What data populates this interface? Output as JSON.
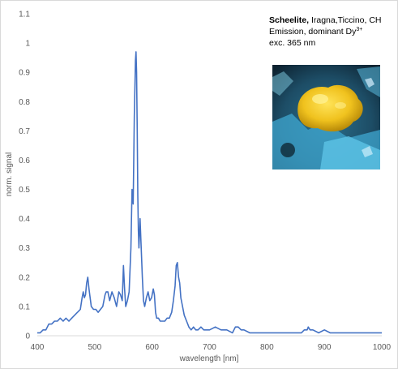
{
  "chart_data": {
    "type": "line",
    "xlabel": "wavelength [nm]",
    "ylabel": "norm. signal",
    "xlim": [
      400,
      1000
    ],
    "ylim": [
      0,
      1.1
    ],
    "x_ticks": [
      "400",
      "500",
      "600",
      "700",
      "800",
      "900",
      "1000"
    ],
    "y_ticks": [
      "0",
      "0.1",
      "0.2",
      "0.3",
      "0.4",
      "0.5",
      "0.6",
      "0.7",
      "0.8",
      "0.9",
      "1",
      "1.1"
    ],
    "grid": false,
    "line_color": "#4472C4",
    "annotation": {
      "line1_bold": "Scheelite,",
      "line1_rest": " Iragna,Ticcino, CH",
      "line2": "Emission, dominant Dy",
      "line2_sup": "3+",
      "line3": "exc. 365 nm"
    },
    "series": [
      {
        "x": [
          400,
          405,
          410,
          415,
          420,
          425,
          430,
          435,
          440,
          445,
          450,
          455,
          460,
          465,
          470,
          475,
          478,
          480,
          482,
          484,
          486,
          488,
          490,
          494,
          498,
          502,
          506,
          510,
          514,
          518,
          520,
          523,
          526,
          530,
          534,
          538,
          542,
          545,
          548,
          550,
          552,
          554,
          557,
          560,
          563,
          565,
          567,
          569,
          571,
          572,
          573,
          574,
          575,
          576,
          577,
          579,
          581,
          583,
          585,
          587,
          590,
          593,
          596,
          599,
          602,
          604,
          606,
          608,
          611,
          614,
          618,
          622,
          626,
          630,
          634,
          637,
          640,
          642,
          644,
          646,
          648,
          650,
          653,
          656,
          660,
          664,
          668,
          672,
          676,
          680,
          685,
          690,
          695,
          700,
          710,
          720,
          730,
          740,
          745,
          750,
          755,
          760,
          770,
          780,
          790,
          800,
          810,
          820,
          830,
          840,
          850,
          860,
          865,
          870,
          872,
          875,
          880,
          890,
          900,
          910,
          920,
          930,
          940,
          950,
          960,
          970,
          980,
          990,
          1000
        ],
        "values": [
          0.01,
          0.01,
          0.02,
          0.02,
          0.04,
          0.04,
          0.05,
          0.05,
          0.06,
          0.05,
          0.06,
          0.05,
          0.06,
          0.07,
          0.08,
          0.09,
          0.13,
          0.15,
          0.13,
          0.14,
          0.18,
          0.2,
          0.16,
          0.1,
          0.09,
          0.09,
          0.08,
          0.09,
          0.1,
          0.14,
          0.15,
          0.15,
          0.12,
          0.15,
          0.13,
          0.1,
          0.15,
          0.14,
          0.12,
          0.24,
          0.16,
          0.1,
          0.12,
          0.15,
          0.3,
          0.5,
          0.45,
          0.75,
          0.94,
          0.97,
          0.9,
          0.7,
          0.48,
          0.36,
          0.3,
          0.4,
          0.3,
          0.2,
          0.12,
          0.1,
          0.13,
          0.15,
          0.12,
          0.13,
          0.16,
          0.14,
          0.08,
          0.06,
          0.06,
          0.05,
          0.05,
          0.05,
          0.06,
          0.06,
          0.08,
          0.12,
          0.17,
          0.24,
          0.25,
          0.2,
          0.18,
          0.13,
          0.1,
          0.07,
          0.05,
          0.03,
          0.02,
          0.03,
          0.02,
          0.02,
          0.03,
          0.02,
          0.02,
          0.02,
          0.03,
          0.02,
          0.02,
          0.01,
          0.03,
          0.03,
          0.02,
          0.02,
          0.01,
          0.01,
          0.01,
          0.01,
          0.01,
          0.01,
          0.01,
          0.01,
          0.01,
          0.01,
          0.02,
          0.02,
          0.03,
          0.02,
          0.02,
          0.01,
          0.02,
          0.01,
          0.01,
          0.01,
          0.01,
          0.01,
          0.01,
          0.01,
          0.01,
          0.01,
          0.01
        ]
      }
    ]
  }
}
